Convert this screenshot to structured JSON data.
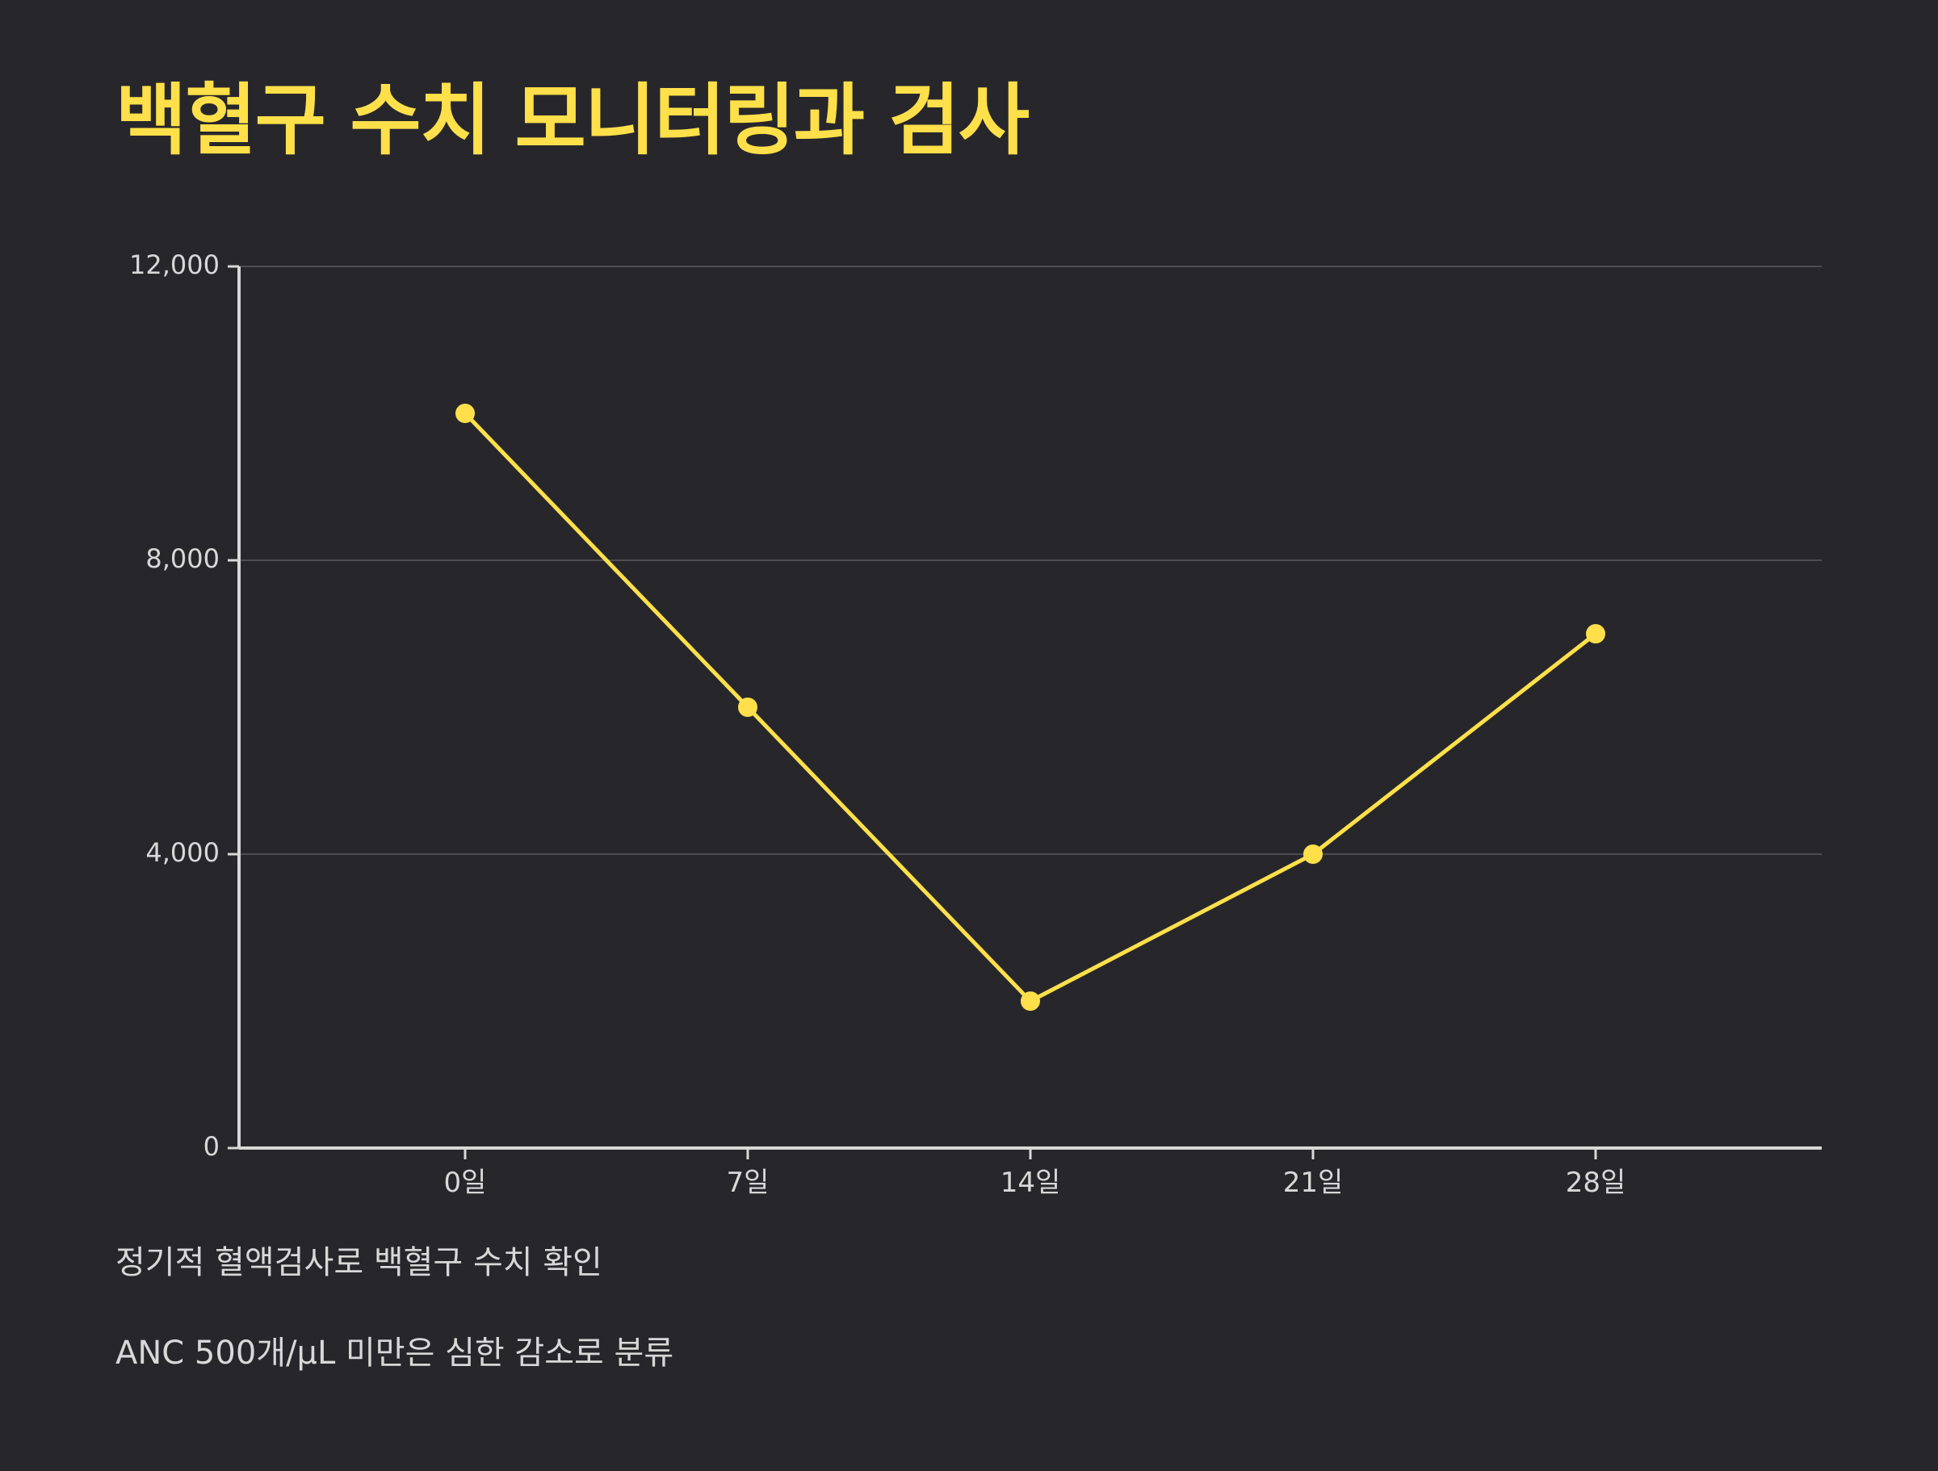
{
  "colors": {
    "background": "#27272b",
    "accent": "#ffe04a",
    "grid": "#4e4e52",
    "axis": "#d8d8d8",
    "text": "#d8d8d8"
  },
  "chart_data": {
    "type": "line",
    "title": "백혈구 수치 모니터링과 검사",
    "xlabel": "",
    "ylabel": "",
    "categories": [
      "0일",
      "7일",
      "14일",
      "21일",
      "28일"
    ],
    "series": [
      {
        "values": [
          10000,
          6000,
          2000,
          4000,
          7000
        ]
      }
    ],
    "ylim": [
      0,
      12000
    ],
    "yticks": [
      0,
      4000,
      8000,
      12000
    ],
    "ytick_labels": [
      "0",
      "4,000",
      "8,000",
      "12,000"
    ],
    "grid": true,
    "legend": "none",
    "notes": [
      "정기적 혈액검사로 백혈구 수치 확인",
      "ANC 500개/μL 미만은 심한 감소로 분류"
    ]
  }
}
